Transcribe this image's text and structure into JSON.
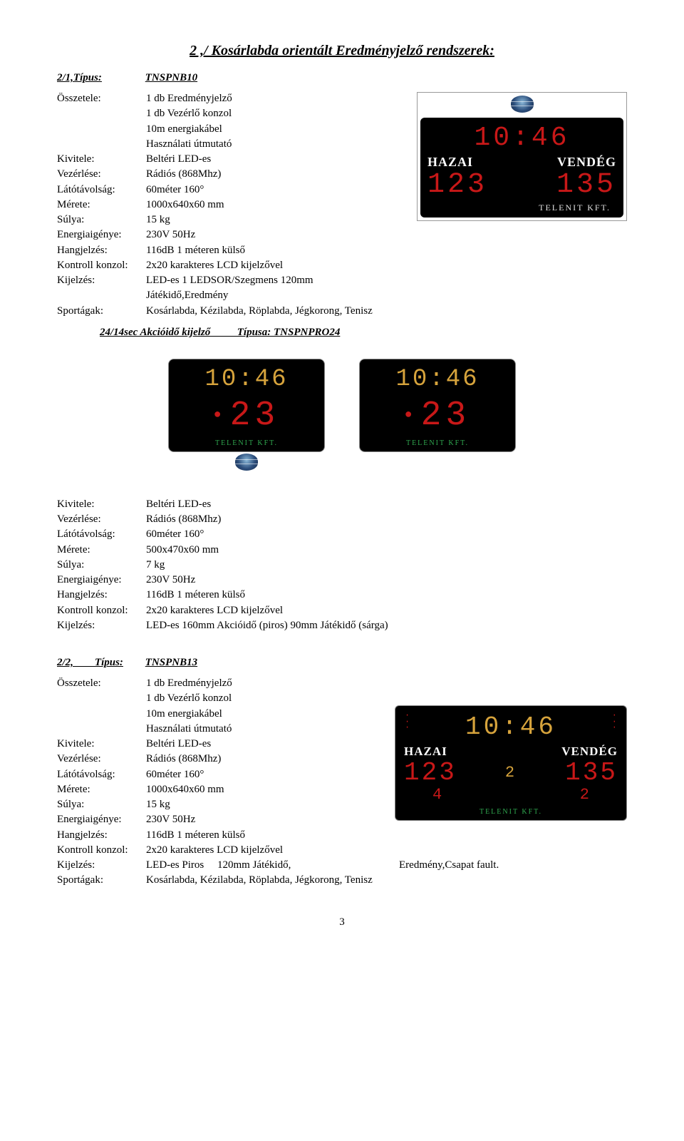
{
  "page_title": "2 ,/ Kosárlabda orientált Eredményjelző rendszerek:",
  "page_number": "3",
  "sec1": {
    "type_label": "2/1,Típus:",
    "type_value": "TNSPNB10",
    "specs": [
      {
        "label": "Összetele:",
        "value": "1 db Eredményjelző"
      },
      {
        "label": "",
        "value": "1 db Vezérlő konzol"
      },
      {
        "label": "",
        "value": "10m energiakábel"
      },
      {
        "label": "",
        "value": "Használati útmutató"
      },
      {
        "label": "Kivitele:",
        "value": "Beltéri LED-es"
      },
      {
        "label": "Vezérlése:",
        "value": "Rádiós (868Mhz)"
      },
      {
        "label": "Látótávolság:",
        "value": "60méter 160°"
      },
      {
        "label": "Mérete:",
        "value": "1000x640x60 mm"
      },
      {
        "label": "Súlya:",
        "value": "15 kg"
      },
      {
        "label": "Energiaigénye:",
        "value": "230V 50Hz"
      },
      {
        "label": "Hangjelzés:",
        "value": "116dB 1 méteren külső"
      },
      {
        "label": "Kontroll konzol:",
        "value": "2x20 karakteres LCD kijelzővel"
      },
      {
        "label": "Kijelzés:",
        "value": "LED-es 1 LEDSOR/Szegmens 120mm"
      },
      {
        "label": "",
        "value": "Játékidő,Eredmény"
      },
      {
        "label": "Sportágak:",
        "value": "Kosárlabda, Kézilabda, Röplabda, Jégkorong, Tenisz"
      }
    ],
    "board": {
      "time": "10:46",
      "home": "HAZAI",
      "away": "VENDÉG",
      "score_home": "123",
      "score_away": "135",
      "brand": "TELENIT KFT."
    }
  },
  "sec2": {
    "header": "24/14sec Akcióidő kijelző          Típusa: TNSPNPRO24",
    "shot": {
      "time": "10:46",
      "sec": "23",
      "brand": "TELENIT KFT."
    },
    "specs": [
      {
        "label": "Kivitele:",
        "value": "Beltéri LED-es"
      },
      {
        "label": "Vezérlése:",
        "value": "Rádiós (868Mhz)"
      },
      {
        "label": "Látótávolság:",
        "value": "60méter 160°"
      },
      {
        "label": "Mérete:",
        "value": "500x470x60 mm"
      },
      {
        "label": "Súlya:",
        "value": "7 kg"
      },
      {
        "label": "Energiaigénye:",
        "value": "230V 50Hz"
      },
      {
        "label": "Hangjelzés:",
        "value": "116dB 1 méteren külső"
      },
      {
        "label": "Kontroll konzol:",
        "value": "2x20 karakteres LCD kijelzővel"
      },
      {
        "label": "Kijelzés:",
        "value": "LED-es 160mm Akcióidő (piros) 90mm Játékidő (sárga)"
      }
    ]
  },
  "sec3": {
    "type_label": "2/2,        Típus:",
    "type_value": "TNSPNB13",
    "specs": [
      {
        "label": "Összetele:",
        "value": "1 db Eredményjelző"
      },
      {
        "label": "",
        "value": "1 db Vezérlő konzol"
      },
      {
        "label": "",
        "value": "10m energiakábel"
      },
      {
        "label": "",
        "value": "Használati útmutató"
      },
      {
        "label": "Kivitele:",
        "value": "Beltéri LED-es"
      },
      {
        "label": "Vezérlése:",
        "value": "Rádiós (868Mhz)"
      },
      {
        "label": "Látótávolság:",
        "value": "60méter 160°"
      },
      {
        "label": "Mérete:",
        "value": "1000x640x60 mm"
      },
      {
        "label": "Súlya:",
        "value": "15 kg"
      },
      {
        "label": "Energiaigénye:",
        "value": "230V 50Hz"
      },
      {
        "label": "Hangjelzés:",
        "value": "116dB 1 méteren külső"
      },
      {
        "label": "Kontroll konzol:",
        "value": "2x20 karakteres LCD kijelzővel"
      },
      {
        "label": "Sportágak:",
        "value": "Kosárlabda, Kézilabda, Röplabda, Jégkorong, Tenisz"
      }
    ],
    "kijelzes_label": "Kijelzés:",
    "kijelzes_left": "LED-es Piros     120mm Játékidő,",
    "kijelzes_right": "Eredmény,Csapat fault.",
    "board": {
      "time": "10:46",
      "home": "HAZAI",
      "away": "VENDÉG",
      "score_home": "123",
      "score_away": "135",
      "mid": "2",
      "foul_home": "4",
      "foul_away": "2",
      "brand": "TELENIT KFT."
    }
  }
}
